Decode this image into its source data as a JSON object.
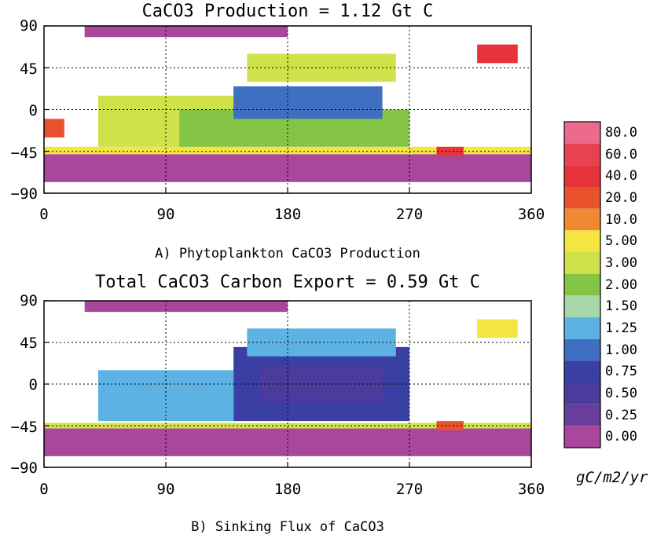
{
  "chart_data": [
    {
      "type": "heatmap",
      "title": "CaCO3 Production = 1.12 Gt C",
      "caption": "A) Phytoplankton CaCO3 Production",
      "x_ticks": [
        "0",
        "90",
        "180",
        "270",
        "360"
      ],
      "y_ticks": [
        "90",
        "45",
        "0",
        "−45",
        "−90"
      ],
      "xlim": [
        0,
        360
      ],
      "ylim": [
        -90,
        90
      ],
      "grid": true,
      "regions": [
        {
          "level": "0.00",
          "lon0": 0,
          "lon1": 360,
          "lat0": -78,
          "lat1": -48
        },
        {
          "level": "5.00",
          "lon0": 0,
          "lon1": 360,
          "lat0": -48,
          "lat1": -40
        },
        {
          "level": "3.00",
          "lon0": 40,
          "lon1": 140,
          "lat0": -40,
          "lat1": 15
        },
        {
          "level": "2.00",
          "lon0": 100,
          "lon1": 270,
          "lat0": -40,
          "lat1": 0
        },
        {
          "level": "1.00",
          "lon0": 140,
          "lon1": 250,
          "lat0": -10,
          "lat1": 25
        },
        {
          "level": "3.00",
          "lon0": 150,
          "lon1": 260,
          "lat0": 30,
          "lat1": 60
        },
        {
          "level": "0.00",
          "lon0": 30,
          "lon1": 180,
          "lat0": 78,
          "lat1": 90
        },
        {
          "level": "40.0",
          "lon0": 320,
          "lon1": 350,
          "lat0": 50,
          "lat1": 70
        },
        {
          "level": "20.0",
          "lon0": 0,
          "lon1": 15,
          "lat0": -10,
          "lat1": -30
        },
        {
          "level": "40.0",
          "lon0": 290,
          "lon1": 310,
          "lat0": -40,
          "lat1": -50
        }
      ]
    },
    {
      "type": "heatmap",
      "title": "Total CaCO3 Carbon Export = 0.59 Gt C",
      "caption": "B) Sinking Flux of CaCO3",
      "x_ticks": [
        "0",
        "90",
        "180",
        "270",
        "360"
      ],
      "y_ticks": [
        "90",
        "45",
        "0",
        "−45",
        "−90"
      ],
      "xlim": [
        0,
        360
      ],
      "ylim": [
        -90,
        90
      ],
      "grid": true,
      "regions": [
        {
          "level": "0.00",
          "lon0": 0,
          "lon1": 360,
          "lat0": -78,
          "lat1": -48
        },
        {
          "level": "3.00",
          "lon0": 0,
          "lon1": 360,
          "lat0": -48,
          "lat1": -42
        },
        {
          "level": "0.75",
          "lon0": 140,
          "lon1": 270,
          "lat0": -40,
          "lat1": 40
        },
        {
          "level": "1.25",
          "lon0": 40,
          "lon1": 140,
          "lat0": -40,
          "lat1": 15
        },
        {
          "level": "0.50",
          "lon0": 160,
          "lon1": 250,
          "lat0": -20,
          "lat1": 20
        },
        {
          "level": "1.25",
          "lon0": 150,
          "lon1": 260,
          "lat0": 30,
          "lat1": 60
        },
        {
          "level": "0.00",
          "lon0": 30,
          "lon1": 180,
          "lat0": 78,
          "lat1": 90
        },
        {
          "level": "5.00",
          "lon0": 320,
          "lon1": 350,
          "lat0": 50,
          "lat1": 70
        },
        {
          "level": "20.0",
          "lon0": 290,
          "lon1": 310,
          "lat0": -40,
          "lat1": -50
        }
      ]
    }
  ],
  "colorbar": {
    "units": "gC/m2/yr",
    "levels": [
      {
        "label": "80.0",
        "color": "#ec6b8c"
      },
      {
        "label": "60.0",
        "color": "#e84150"
      },
      {
        "label": "40.0",
        "color": "#e6343a"
      },
      {
        "label": "20.0",
        "color": "#e8532e"
      },
      {
        "label": "10.0",
        "color": "#f08a32"
      },
      {
        "label": "5.00",
        "color": "#f4e540"
      },
      {
        "label": "3.00",
        "color": "#cfe24a"
      },
      {
        "label": "2.00",
        "color": "#84c447"
      },
      {
        "label": "1.50",
        "color": "#a8d7a8"
      },
      {
        "label": "1.25",
        "color": "#5cb3e3"
      },
      {
        "label": "1.00",
        "color": "#3f6fc0"
      },
      {
        "label": "0.75",
        "color": "#3a3fa4"
      },
      {
        "label": "0.50",
        "color": "#4a3b9c"
      },
      {
        "label": "0.25",
        "color": "#683e9c"
      },
      {
        "label": "0.00",
        "color": "#a8479b"
      }
    ]
  }
}
